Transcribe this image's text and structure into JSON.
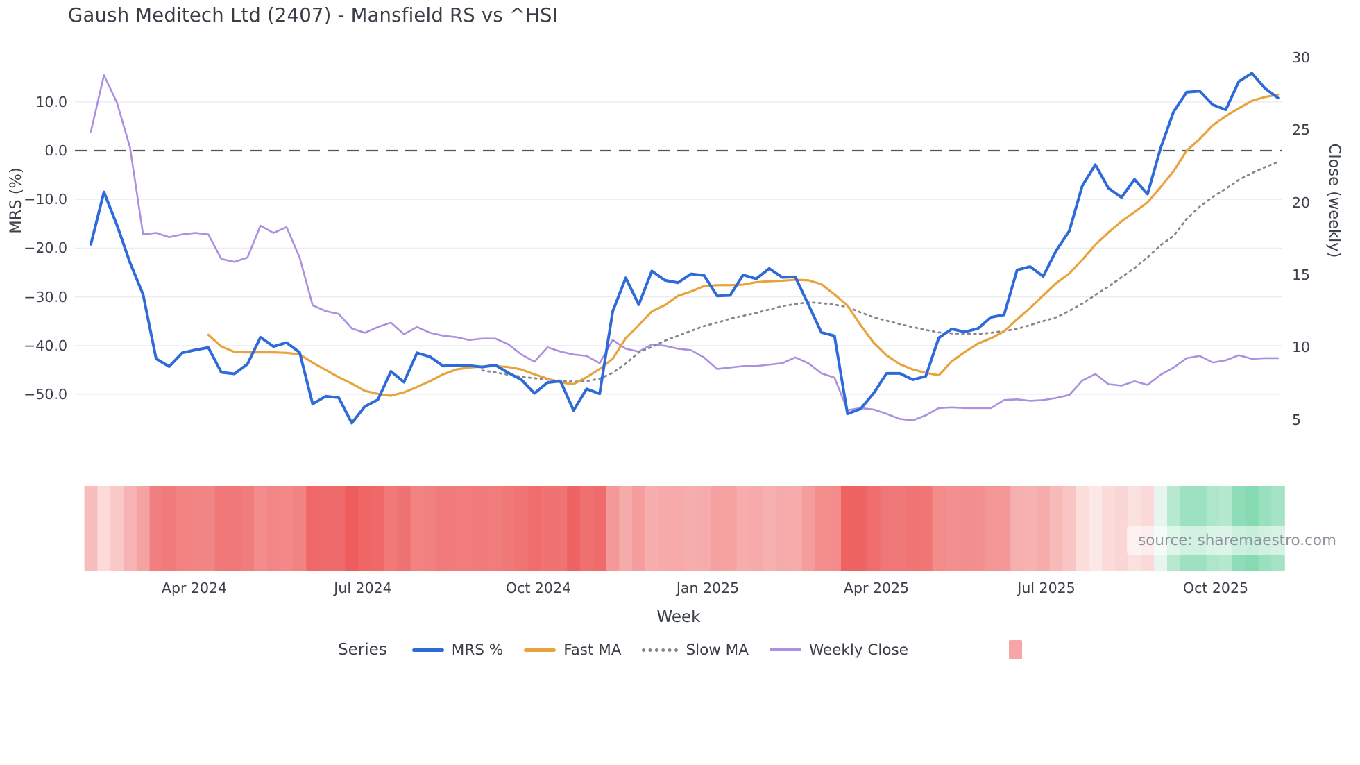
{
  "title": "Gaush Meditech Ltd (2407) - Mansfield RS vs ^HSI",
  "source": "source: sharemaestro.com",
  "axes": {
    "left": {
      "title": "MRS (%)",
      "ticks": [
        "10.0",
        "0.0",
        "−10.0",
        "−20.0",
        "−30.0",
        "−40.0",
        "−50.0"
      ]
    },
    "right": {
      "title": "Close (weekly)",
      "ticks": [
        "30",
        "25",
        "20",
        "15",
        "10",
        "5"
      ]
    },
    "x": {
      "title": "Week",
      "ticks": [
        {
          "label": "Apr 2024"
        },
        {
          "label": "Jul 2024"
        },
        {
          "label": "Oct 2024"
        },
        {
          "label": "Jan 2025"
        },
        {
          "label": "Apr 2025"
        },
        {
          "label": "Jul 2025"
        },
        {
          "label": "Oct 2025"
        }
      ]
    }
  },
  "legend": {
    "title": "Series",
    "items": [
      {
        "label": "MRS %",
        "color": "#2e6bd9",
        "style": "solid"
      },
      {
        "label": "Fast MA",
        "color": "#e7a33c",
        "style": "solid"
      },
      {
        "label": "Slow MA",
        "color": "#83868d",
        "style": "dotted"
      },
      {
        "label": "Weekly Close",
        "color": "#ab8fe0",
        "style": "solid"
      },
      {
        "label": "",
        "color": "#f6a6a6",
        "style": "square"
      }
    ]
  },
  "chart_data": {
    "type": "line",
    "x_unit": "week",
    "x_count": 92,
    "x_tick_week_index": [
      8,
      21,
      34,
      47,
      60,
      73,
      86
    ],
    "x_tick_labels": [
      "Apr 2024",
      "Jul 2024",
      "Oct 2024",
      "Jan 2025",
      "Apr 2025",
      "Jul 2025",
      "Oct 2025"
    ],
    "left_axis": {
      "label": "MRS (%)",
      "ticks": [
        10,
        0,
        -10,
        -20,
        -30,
        -40,
        -50
      ],
      "range": [
        -58,
        17
      ]
    },
    "right_axis": {
      "label": "Close (weekly)",
      "ticks": [
        30,
        25,
        20,
        15,
        10,
        5
      ],
      "range": [
        3.8,
        31.4
      ]
    },
    "zero_line": {
      "value": 0,
      "axis": "left",
      "style": "dashed",
      "color": "#55575f"
    },
    "grid": true,
    "legend_position": "bottom",
    "series": [
      {
        "name": "MRS %",
        "axis": "left",
        "color": "#2e6bd9",
        "width": 4,
        "dash": "",
        "values": [
          -19.2,
          -8.5,
          -15.3,
          -23,
          -29.5,
          -42.7,
          -44.3,
          -41.5,
          -40.9,
          -40.4,
          -45.5,
          -45.8,
          -43.8,
          -38.3,
          -40.2,
          -39.4,
          -41.4,
          -52,
          -50.4,
          -50.7,
          -55.9,
          -52.5,
          -51.1,
          -45.3,
          -47.5,
          -41.5,
          -42.3,
          -44.2,
          -44,
          -44.1,
          -44.4,
          -44,
          -45.6,
          -47,
          -49.8,
          -47.6,
          -47.3,
          -53.3,
          -48.9,
          -49.9,
          -33,
          -26.1,
          -31.6,
          -24.7,
          -26.6,
          -27.1,
          -25.3,
          -25.6,
          -29.8,
          -29.7,
          -25.5,
          -26.3,
          -24.2,
          -26,
          -25.9,
          -31.6,
          -37.3,
          -38,
          -54,
          -53,
          -49.8,
          -45.7,
          -45.7,
          -47,
          -46.3,
          -38.4,
          -36.6,
          -37.2,
          -36.5,
          -34.2,
          -33.7,
          -24.5,
          -23.8,
          -25.8,
          -20.5,
          -16.5,
          -7.2,
          -2.9,
          -7.7,
          -9.6,
          -5.9,
          -8.9,
          0.5,
          8,
          12,
          12.2,
          9.4,
          8.4,
          14.2,
          15.9,
          12.8,
          10.8
        ]
      },
      {
        "name": "Fast MA",
        "axis": "left",
        "color": "#e7a33c",
        "width": 3.2,
        "dash": "",
        "values": [
          null,
          null,
          null,
          null,
          null,
          null,
          null,
          null,
          null,
          -37.8,
          -40.2,
          -41.3,
          -41.4,
          -41.4,
          -41.4,
          -41.5,
          -41.8,
          -43.5,
          -45,
          -46.5,
          -47.8,
          -49.3,
          -49.9,
          -50.3,
          -49.6,
          -48.5,
          -47.3,
          -45.9,
          -44.9,
          -44.5,
          -44.3,
          -44.2,
          -44.4,
          -44.9,
          -45.9,
          -46.8,
          -47.6,
          -47.9,
          -46.5,
          -44.8,
          -42.7,
          -38.5,
          -35.8,
          -33,
          -31.7,
          -29.8,
          -28.9,
          -27.8,
          -27.6,
          -27.6,
          -27.5,
          -27,
          -26.8,
          -26.7,
          -26.5,
          -26.6,
          -27.4,
          -29.5,
          -31.8,
          -35.8,
          -39.4,
          -42,
          -43.8,
          -44.9,
          -45.6,
          -46.1,
          -43.2,
          -41.3,
          -39.6,
          -38.5,
          -37.1,
          -34.6,
          -32.3,
          -29.7,
          -27.2,
          -25.2,
          -22.4,
          -19.3,
          -16.8,
          -14.5,
          -12.6,
          -10.6,
          -7.5,
          -4.2,
          0,
          2.4,
          5.2,
          7.1,
          8.7,
          10.2,
          11,
          11.5
        ]
      },
      {
        "name": "Slow MA",
        "axis": "left",
        "color": "#83868d",
        "width": 2.8,
        "dash": "2.5 6",
        "values": [
          null,
          null,
          null,
          null,
          null,
          null,
          null,
          null,
          null,
          null,
          null,
          null,
          null,
          null,
          null,
          null,
          null,
          null,
          null,
          null,
          null,
          null,
          null,
          null,
          null,
          null,
          null,
          null,
          null,
          null,
          -45.1,
          -45.5,
          -46,
          -46.4,
          -46.7,
          -47,
          -47.2,
          -47.4,
          -47.3,
          -46.8,
          -45.6,
          -43.7,
          -41.4,
          -40.3,
          -39,
          -38,
          -37,
          -36,
          -35.3,
          -34.5,
          -33.9,
          -33.3,
          -32.6,
          -31.9,
          -31.5,
          -31.1,
          -31.3,
          -31.6,
          -32.1,
          -33.2,
          -34.2,
          -34.9,
          -35.6,
          -36.2,
          -36.8,
          -37.3,
          -37.5,
          -37.6,
          -37.6,
          -37.4,
          -37,
          -36.6,
          -35.8,
          -35,
          -34.2,
          -32.9,
          -31.4,
          -29.6,
          -27.9,
          -26,
          -24.1,
          -21.9,
          -19.4,
          -17.5,
          -14,
          -11.5,
          -9.5,
          -7.8,
          -6,
          -4.6,
          -3.4,
          -2.3
        ]
      },
      {
        "name": "Weekly Close",
        "axis": "right",
        "color": "#ab8fe0",
        "width": 2.6,
        "dash": "",
        "values": [
          24.9,
          28.8,
          26.9,
          23.8,
          17.8,
          17.9,
          17.6,
          17.8,
          17.9,
          17.8,
          16.1,
          15.9,
          16.2,
          18.4,
          17.9,
          18.3,
          16.2,
          12.9,
          12.5,
          12.3,
          11.3,
          11,
          11.4,
          11.7,
          10.9,
          11.4,
          11,
          10.8,
          10.7,
          10.5,
          10.6,
          10.6,
          10.2,
          9.5,
          9,
          10,
          9.7,
          9.5,
          9.4,
          8.9,
          10.5,
          9.9,
          9.7,
          10.2,
          10.1,
          9.9,
          9.8,
          9.3,
          8.5,
          8.6,
          8.7,
          8.7,
          8.8,
          8.9,
          9.3,
          8.9,
          8.2,
          7.9,
          5.65,
          5.8,
          5.7,
          5.4,
          5.05,
          4.95,
          5.3,
          5.8,
          5.85,
          5.8,
          5.8,
          5.8,
          6.35,
          6.4,
          6.3,
          6.35,
          6.5,
          6.7,
          7.7,
          8.15,
          7.45,
          7.35,
          7.65,
          7.4,
          8.1,
          8.6,
          9.25,
          9.4,
          8.95,
          9.1,
          9.45,
          9.2,
          9.25,
          9.25
        ]
      }
    ],
    "heatmap_strip": {
      "derived_from": "MRS %",
      "negative_strong_color": "#ed5757",
      "negative_light_color": "#fdf0ef",
      "positive_strong_color": "#84dab1",
      "positive_light_color": "#e9f7f1",
      "negative_domain": [
        0,
        -58
      ],
      "positive_domain": [
        0,
        16
      ]
    }
  }
}
